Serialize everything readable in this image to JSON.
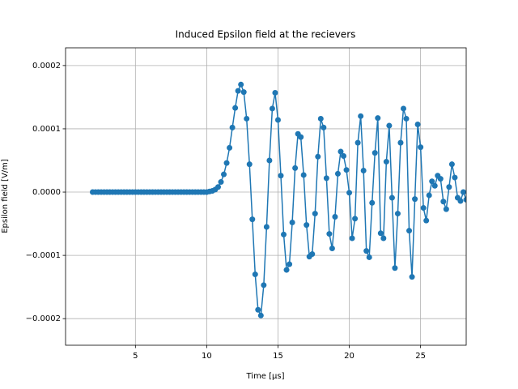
{
  "chart_data": {
    "type": "line",
    "title": "Induced Epsilon field at the recievers",
    "xlabel": "Time [μs]",
    "ylabel": "Epsilon field [V/m]",
    "xlim": [
      0.1,
      28.2
    ],
    "ylim": [
      -0.000242,
      0.000228
    ],
    "xticks": [
      5,
      10,
      15,
      20,
      25
    ],
    "yticks": [
      {
        "value": -0.0002,
        "label": "−0.0002"
      },
      {
        "value": -0.0001,
        "label": "−0.0001"
      },
      {
        "value": 0,
        "label": "0.0000"
      },
      0.0001,
      0.0002
    ],
    "grid": true,
    "x": [
      2.0,
      2.2,
      2.4,
      2.6,
      2.8,
      3.0,
      3.2,
      3.4,
      3.6,
      3.8,
      4.0,
      4.2,
      4.4,
      4.6,
      4.8,
      5.0,
      5.2,
      5.4,
      5.6,
      5.8,
      6.0,
      6.2,
      6.4,
      6.6,
      6.8,
      7.0,
      7.2,
      7.4,
      7.6,
      7.8,
      8.0,
      8.2,
      8.4,
      8.6,
      8.8,
      9.0,
      9.2,
      9.4,
      9.6,
      9.8,
      10.0,
      10.2,
      10.4,
      10.6,
      10.8,
      11.0,
      11.2,
      11.4,
      11.6,
      11.8,
      12.0,
      12.2,
      12.4,
      12.6,
      12.8,
      13.0,
      13.2,
      13.4,
      13.6,
      13.8,
      14.0,
      14.2,
      14.4,
      14.6,
      14.8,
      15.0,
      15.2,
      15.4,
      15.6,
      15.8,
      16.0,
      16.2,
      16.4,
      16.6,
      16.8,
      17.0,
      17.2,
      17.4,
      17.6,
      17.8,
      18.0,
      18.2,
      18.4,
      18.6,
      18.8,
      19.0,
      19.2,
      19.4,
      19.6,
      19.8,
      20.0,
      20.2,
      20.4,
      20.6,
      20.8,
      21.0,
      21.2,
      21.4,
      21.6,
      21.8,
      22.0,
      22.2,
      22.4,
      22.6,
      22.8,
      23.0,
      23.2,
      23.4,
      23.6,
      23.8,
      24.0,
      24.2,
      24.4,
      24.6,
      24.8,
      25.0,
      25.2,
      25.4,
      25.6,
      25.8,
      26.0,
      26.2,
      26.4,
      26.6,
      26.8,
      27.0,
      27.2,
      27.4,
      27.6,
      27.8,
      28.0,
      28.2
    ],
    "series": [
      {
        "name": "Epsilon field",
        "color": "#1f77b4",
        "values": [
          0,
          0,
          0,
          0,
          0,
          0,
          0,
          0,
          0,
          0,
          0,
          0,
          0,
          0,
          0,
          0,
          0,
          0,
          0,
          0,
          0,
          0,
          0,
          0,
          0,
          0,
          0,
          0,
          0,
          0,
          0,
          0,
          0,
          0,
          0,
          0,
          0,
          0,
          0,
          0,
          0,
          1e-06,
          2e-06,
          4e-06,
          8e-06,
          1.6e-05,
          2.8e-05,
          4.6e-05,
          7e-05,
          0.000102,
          0.000133,
          0.00016,
          0.00017,
          0.000158,
          0.000116,
          4.4e-05,
          -4.3e-05,
          -0.00013,
          -0.000186,
          -0.000195,
          -0.000147,
          -5.5e-05,
          5e-05,
          0.000132,
          0.000157,
          0.000114,
          2.6e-05,
          -6.7e-05,
          -0.000123,
          -0.000114,
          -4.8e-05,
          3.8e-05,
          9.2e-05,
          8.7e-05,
          2.7e-05,
          -5.2e-05,
          -0.000102,
          -9.8e-05,
          -3.4e-05,
          5.6e-05,
          0.000116,
          0.000102,
          2.2e-05,
          -6.6e-05,
          -8.9e-05,
          -3.9e-05,
          2.9e-05,
          6.4e-05,
          5.7e-05,
          3.5e-05,
          -1e-06,
          -7.3e-05,
          -4.2e-05,
          7.8e-05,
          0.00012,
          3.4e-05,
          -9.3e-05,
          -0.000103,
          -1.7e-05,
          6.2e-05,
          0.000117,
          -6.5e-05,
          -7.3e-05,
          4.8e-05,
          0.000105,
          -9e-06,
          -0.00012,
          -3.4e-05,
          7.8e-05,
          0.000132,
          0.000116,
          -6.1e-05,
          -0.000134,
          -1.1e-05,
          0.000107,
          7.1e-05,
          -2.5e-05,
          -4.5e-05,
          -5e-06,
          1.7e-05,
          1e-05,
          2.6e-05,
          2.1e-05,
          -1.5e-05,
          -2.7e-05,
          8e-06,
          4.4e-05,
          2.3e-05,
          -9e-06,
          -1.4e-05,
          0,
          -1.2e-05
        ]
      }
    ]
  }
}
